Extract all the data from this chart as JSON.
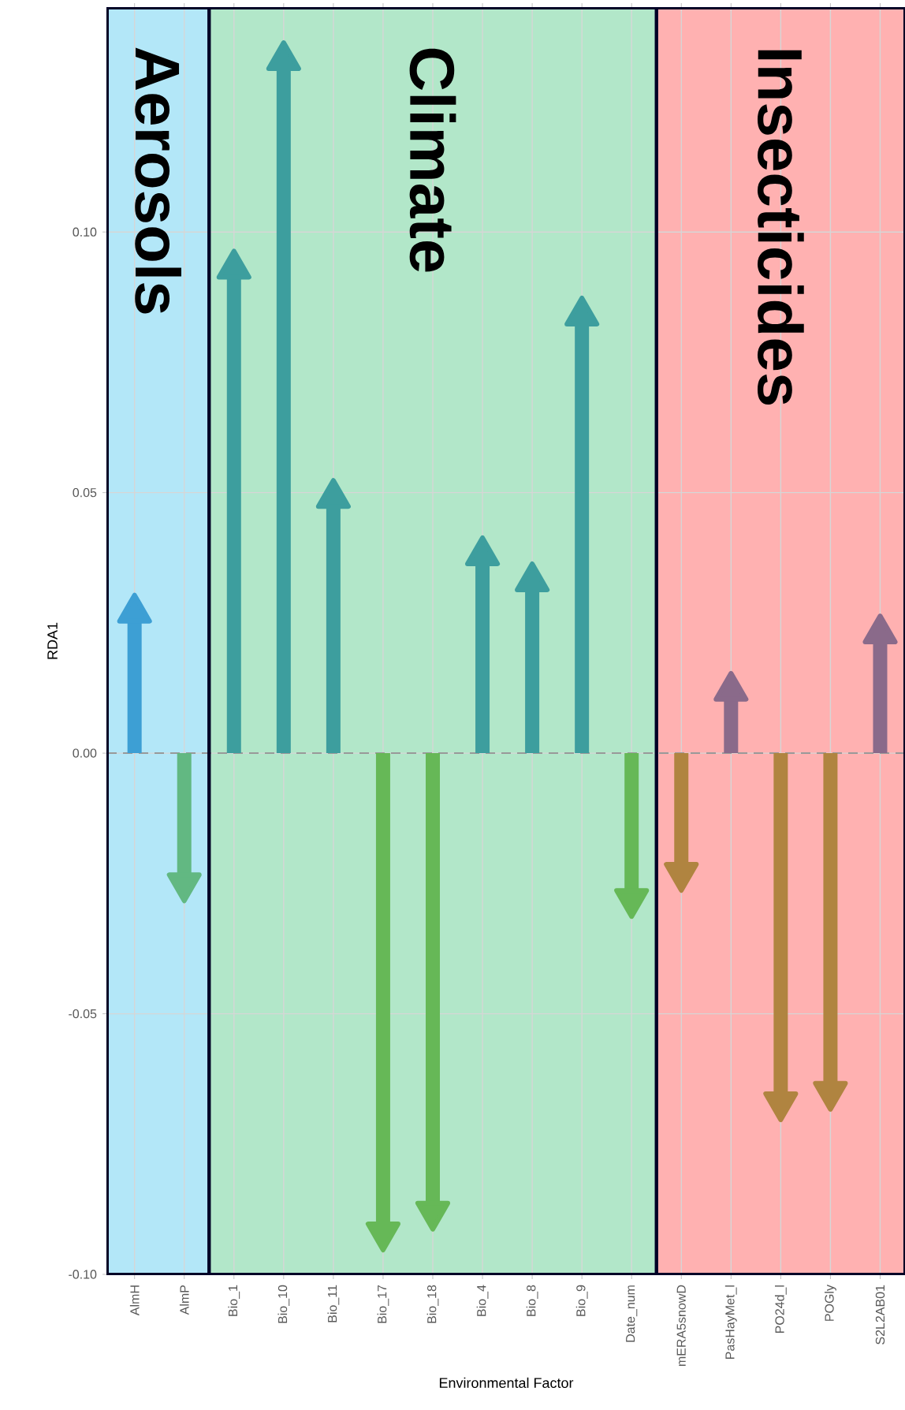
{
  "chart_data": {
    "type": "lollipop",
    "marker": "triangle",
    "xlabel": "Environmental Factor",
    "ylabel": "RDA1",
    "categories": [
      "AlmH",
      "AlmP",
      "Bio_1",
      "Bio_10",
      "Bio_11",
      "Bio_17",
      "Bio_18",
      "Bio_4",
      "Bio_8",
      "Bio_9",
      "Date_num",
      "mERA5snowD",
      "PasHayMet_l",
      "PO24d_l",
      "POGly",
      "S2L2AB01"
    ],
    "values": [
      0.027,
      -0.025,
      0.093,
      0.133,
      0.049,
      -0.092,
      -0.088,
      0.038,
      0.033,
      0.084,
      -0.028,
      -0.023,
      0.012,
      -0.067,
      -0.065,
      0.023
    ],
    "colors": [
      "#3d9fd4",
      "#62b882",
      "#3d9e9e",
      "#3d9e9e",
      "#3d9e9e",
      "#66b857",
      "#66b857",
      "#3d9e9e",
      "#3d9e9e",
      "#3d9e9e",
      "#66b857",
      "#b08440",
      "#8a6a8a",
      "#b08440",
      "#b08440",
      "#8a6a8a"
    ],
    "ylim": [
      -0.1,
      0.143
    ],
    "yticks": [
      {
        "value": -0.1,
        "label": "-0.10"
      },
      {
        "value": -0.05,
        "label": "-0.05"
      },
      {
        "value": 0,
        "label": "0.00"
      },
      {
        "value": 0.05,
        "label": "0.05"
      },
      {
        "value": 0.1,
        "label": "0.10"
      }
    ],
    "grid": true,
    "ref_lines": [
      {
        "axis": "y",
        "value": 0,
        "color": "#999999",
        "line_style": "dashed"
      }
    ],
    "bands": [
      {
        "axis": "x",
        "from": "AlmH",
        "to": "AlmP",
        "label": "Aerosols",
        "color": "#b3e7f8"
      },
      {
        "axis": "x",
        "from": "Bio_1",
        "to": "Date_num",
        "label": "Climate",
        "color": "#b2e7c9"
      },
      {
        "axis": "x",
        "from": "mERA5snowD",
        "to": "S2L2AB01",
        "label": "Insecticides",
        "color": "#ffb1b1"
      }
    ]
  }
}
